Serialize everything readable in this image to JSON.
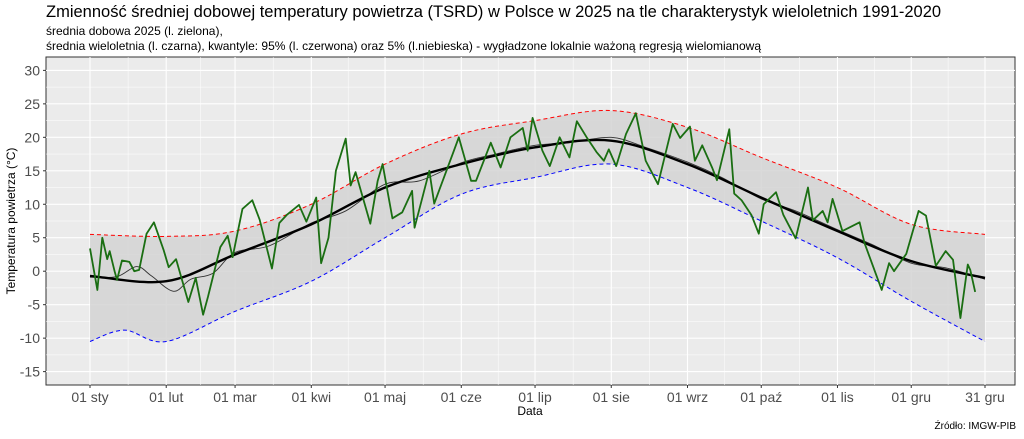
{
  "chart_data": {
    "type": "line",
    "title": "Zmienność średniej dobowej temperatury powietrza (TSRD) w Polsce w 2025 na tle charakterystyk wieloletnich 1991-2020",
    "subtitle_1": "średnia dobowa 2025 (l. zielona),",
    "subtitle_2": "średnia wieloletnia (l. czarna), kwantyle: 95% (l. czerwona) oraz 5% (l.niebieska) - wygładzone lokalnie ważoną regresją wielomianową",
    "xlabel": "Data",
    "ylabel": "Temperatura powietrza (°C)",
    "source": "Źródło: IMGW-PIB",
    "ylim": [
      -17,
      32
    ],
    "xlim": [
      "2025-01-01",
      "2025-12-31"
    ],
    "yticks": [
      -15,
      -10,
      -5,
      0,
      5,
      10,
      15,
      20,
      25,
      30
    ],
    "xticks": [
      {
        "date": "2025-01-01",
        "label": "01 sty"
      },
      {
        "date": "2025-02-01",
        "label": "01 lut"
      },
      {
        "date": "2025-03-01",
        "label": "01 mar"
      },
      {
        "date": "2025-04-01",
        "label": "01 kwi"
      },
      {
        "date": "2025-05-01",
        "label": "01 maj"
      },
      {
        "date": "2025-06-01",
        "label": "01 cze"
      },
      {
        "date": "2025-07-01",
        "label": "01 lip"
      },
      {
        "date": "2025-08-01",
        "label": "01 sie"
      },
      {
        "date": "2025-09-01",
        "label": "01 wrz"
      },
      {
        "date": "2025-10-01",
        "label": "01 paź"
      },
      {
        "date": "2025-11-01",
        "label": "01 lis"
      },
      {
        "date": "2025-12-01",
        "label": "01 gru"
      },
      {
        "date": "2025-12-31",
        "label": "31 gru"
      }
    ],
    "grid": true,
    "colors": {
      "daily_2025": "#1a6e12",
      "mean": "#000000",
      "q95": "#ff0000",
      "q05": "#0000ff",
      "band": "#d4d4d4",
      "panel": "#ebebeb"
    },
    "series": {
      "daily_2025": [
        [
          "2025-01-01",
          3.4
        ],
        [
          "2025-01-04",
          -2.8
        ],
        [
          "2025-01-06",
          5
        ],
        [
          "2025-01-08",
          1.8
        ],
        [
          "2025-01-09",
          3
        ],
        [
          "2025-01-11",
          0
        ],
        [
          "2025-01-12",
          -1.3
        ],
        [
          "2025-01-14",
          1.6
        ],
        [
          "2025-01-17",
          1.4
        ],
        [
          "2025-01-19",
          0
        ],
        [
          "2025-01-21",
          0.2
        ],
        [
          "2025-01-24",
          5.6
        ],
        [
          "2025-01-27",
          7.3
        ],
        [
          "2025-01-31",
          3.1
        ],
        [
          "2025-02-02",
          0.6
        ],
        [
          "2025-02-05",
          1.8
        ],
        [
          "2025-02-10",
          -4.6
        ],
        [
          "2025-02-13",
          -1
        ],
        [
          "2025-02-16",
          -6.5
        ],
        [
          "2025-02-18",
          -3.8
        ],
        [
          "2025-02-23",
          3.6
        ],
        [
          "2025-02-26",
          5.3
        ],
        [
          "2025-02-28",
          2.1
        ],
        [
          "2025-03-04",
          9.3
        ],
        [
          "2025-03-08",
          10.6
        ],
        [
          "2025-03-11",
          7.7
        ],
        [
          "2025-03-16",
          0.4
        ],
        [
          "2025-03-19",
          7.2
        ],
        [
          "2025-03-22",
          8.4
        ],
        [
          "2025-03-27",
          9.9
        ],
        [
          "2025-03-30",
          7.4
        ],
        [
          "2025-04-03",
          11
        ],
        [
          "2025-04-05",
          1.2
        ],
        [
          "2025-04-08",
          5
        ],
        [
          "2025-04-11",
          15
        ],
        [
          "2025-04-15",
          19.8
        ],
        [
          "2025-04-17",
          12.8
        ],
        [
          "2025-04-19",
          14.8
        ],
        [
          "2025-04-25",
          7.1
        ],
        [
          "2025-04-28",
          13.5
        ],
        [
          "2025-04-30",
          16
        ],
        [
          "2025-05-04",
          7.9
        ],
        [
          "2025-05-08",
          8.8
        ],
        [
          "2025-05-12",
          12
        ],
        [
          "2025-05-13",
          6.5
        ],
        [
          "2025-05-19",
          15
        ],
        [
          "2025-05-21",
          10.1
        ],
        [
          "2025-05-29",
          18
        ],
        [
          "2025-05-31",
          20
        ],
        [
          "2025-06-05",
          13.5
        ],
        [
          "2025-06-07",
          13.5
        ],
        [
          "2025-06-13",
          19.2
        ],
        [
          "2025-06-17",
          15.5
        ],
        [
          "2025-06-21",
          20
        ],
        [
          "2025-06-26",
          21.4
        ],
        [
          "2025-06-28",
          18
        ],
        [
          "2025-06-30",
          22.9
        ],
        [
          "2025-07-04",
          18
        ],
        [
          "2025-07-07",
          15.7
        ],
        [
          "2025-07-11",
          20
        ],
        [
          "2025-07-15",
          17
        ],
        [
          "2025-07-18",
          22.4
        ],
        [
          "2025-07-22",
          20
        ],
        [
          "2025-07-26",
          17.8
        ],
        [
          "2025-07-29",
          16.5
        ],
        [
          "2025-07-31",
          18.2
        ],
        [
          "2025-08-03",
          15.7
        ],
        [
          "2025-08-07",
          20.5
        ],
        [
          "2025-08-11",
          23.6
        ],
        [
          "2025-08-15",
          16.5
        ],
        [
          "2025-08-20",
          13
        ],
        [
          "2025-08-26",
          22
        ],
        [
          "2025-08-29",
          19.9
        ],
        [
          "2025-09-02",
          21.6
        ],
        [
          "2025-09-04",
          16.5
        ],
        [
          "2025-09-07",
          18.8
        ],
        [
          "2025-09-11",
          15.5
        ],
        [
          "2025-09-13",
          13.6
        ],
        [
          "2025-09-18",
          21.2
        ],
        [
          "2025-09-20",
          11.6
        ],
        [
          "2025-09-23",
          10.6
        ],
        [
          "2025-09-27",
          8.4
        ],
        [
          "2025-09-30",
          5.6
        ],
        [
          "2025-10-02",
          10
        ],
        [
          "2025-10-07",
          11.8
        ],
        [
          "2025-10-10",
          8.4
        ],
        [
          "2025-10-15",
          4.9
        ],
        [
          "2025-10-20",
          12.5
        ],
        [
          "2025-10-22",
          7.6
        ],
        [
          "2025-10-26",
          9
        ],
        [
          "2025-10-28",
          7.3
        ],
        [
          "2025-10-30",
          10.8
        ],
        [
          "2025-11-03",
          6
        ],
        [
          "2025-11-10",
          7.3
        ],
        [
          "2025-11-12",
          4.2
        ],
        [
          "2025-11-19",
          -2.8
        ],
        [
          "2025-11-22",
          1.2
        ],
        [
          "2025-11-24",
          0
        ],
        [
          "2025-11-29",
          2.6
        ],
        [
          "2025-12-04",
          9
        ],
        [
          "2025-12-07",
          8.3
        ],
        [
          "2025-12-11",
          0.8
        ],
        [
          "2025-12-15",
          3
        ],
        [
          "2025-12-18",
          1.7
        ],
        [
          "2025-12-21",
          -7
        ],
        [
          "2025-12-24",
          1
        ],
        [
          "2025-12-25",
          0.2
        ],
        [
          "2025-12-27",
          -3.1
        ]
      ],
      "mean": [
        [
          "2025-01-01",
          -0.7
        ],
        [
          "2025-02-01",
          -1.5
        ],
        [
          "2025-03-01",
          2.5
        ],
        [
          "2025-04-01",
          7
        ],
        [
          "2025-05-01",
          12.5
        ],
        [
          "2025-06-01",
          16
        ],
        [
          "2025-07-01",
          18.5
        ],
        [
          "2025-08-01",
          19.5
        ],
        [
          "2025-09-01",
          16
        ],
        [
          "2025-10-01",
          11
        ],
        [
          "2025-11-01",
          6
        ],
        [
          "2025-12-01",
          1.5
        ],
        [
          "2025-12-31",
          -1
        ]
      ],
      "mean_daily": [
        [
          "2025-01-01",
          -0.9
        ],
        [
          "2025-01-12",
          -0.8
        ],
        [
          "2025-01-20",
          0.7
        ],
        [
          "2025-01-26",
          -0.7
        ],
        [
          "2025-02-04",
          -3
        ],
        [
          "2025-02-11",
          -1.2
        ],
        [
          "2025-02-20",
          -0.3
        ],
        [
          "2025-03-01",
          2.8
        ],
        [
          "2025-03-15",
          3.8
        ],
        [
          "2025-04-01",
          7.2
        ],
        [
          "2025-04-15",
          9
        ],
        [
          "2025-05-01",
          13
        ],
        [
          "2025-05-15",
          13.5
        ],
        [
          "2025-06-01",
          16.2
        ],
        [
          "2025-06-15",
          17.5
        ],
        [
          "2025-07-01",
          18.8
        ],
        [
          "2025-07-15",
          19.2
        ],
        [
          "2025-08-01",
          20
        ],
        [
          "2025-08-15",
          18.5
        ],
        [
          "2025-09-01",
          16.3
        ],
        [
          "2025-09-15",
          14
        ],
        [
          "2025-10-01",
          10.8
        ],
        [
          "2025-10-15",
          9
        ],
        [
          "2025-11-01",
          6.2
        ],
        [
          "2025-11-15",
          4
        ],
        [
          "2025-12-01",
          1.2
        ],
        [
          "2025-12-15",
          0.5
        ],
        [
          "2025-12-31",
          -1.2
        ]
      ],
      "q95": [
        [
          "2025-01-01",
          5.5
        ],
        [
          "2025-02-01",
          5.2
        ],
        [
          "2025-03-01",
          6
        ],
        [
          "2025-04-01",
          10
        ],
        [
          "2025-05-01",
          16
        ],
        [
          "2025-06-01",
          20.5
        ],
        [
          "2025-07-01",
          22.5
        ],
        [
          "2025-08-01",
          24
        ],
        [
          "2025-09-01",
          21.5
        ],
        [
          "2025-10-01",
          17
        ],
        [
          "2025-11-01",
          12.5
        ],
        [
          "2025-12-01",
          7
        ],
        [
          "2025-12-31",
          5.5
        ]
      ],
      "q05": [
        [
          "2025-01-01",
          -10.5
        ],
        [
          "2025-01-15",
          -8.8
        ],
        [
          "2025-02-01",
          -10.5
        ],
        [
          "2025-03-01",
          -6
        ],
        [
          "2025-04-01",
          -1.5
        ],
        [
          "2025-05-01",
          5
        ],
        [
          "2025-06-01",
          11.5
        ],
        [
          "2025-07-01",
          14
        ],
        [
          "2025-08-01",
          16
        ],
        [
          "2025-09-01",
          12.5
        ],
        [
          "2025-10-01",
          7.5
        ],
        [
          "2025-11-01",
          2
        ],
        [
          "2025-12-01",
          -4.5
        ],
        [
          "2025-12-31",
          -10.5
        ]
      ]
    }
  }
}
